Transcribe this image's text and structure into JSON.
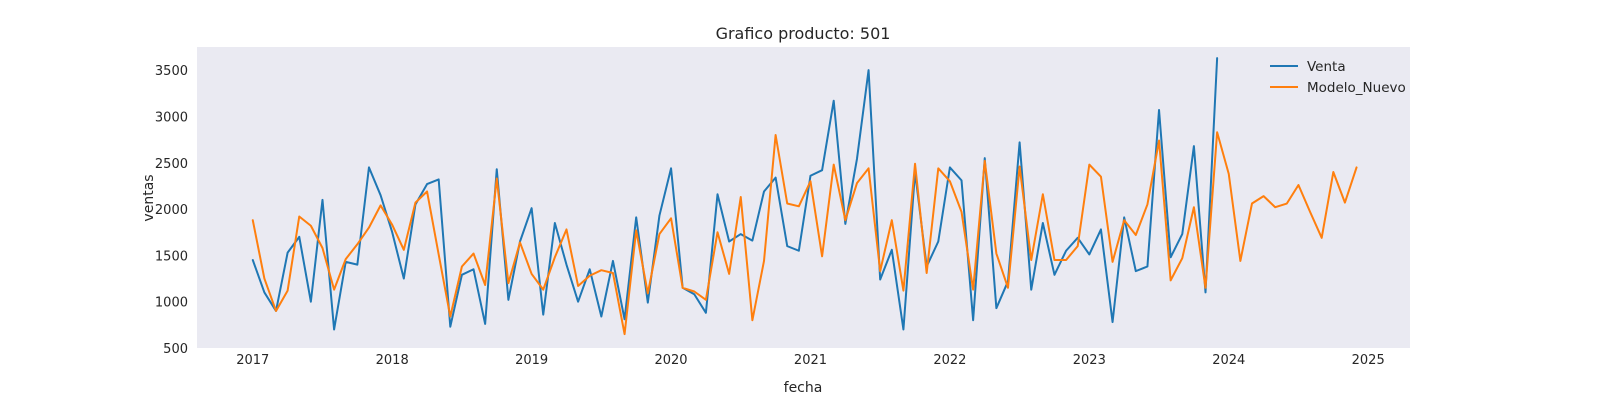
{
  "chart_data": {
    "type": "line",
    "title": "Grafico producto: 501",
    "xlabel": "fecha",
    "ylabel": "ventas",
    "xlim": [
      2016.6,
      2025.3
    ],
    "ylim": [
      500,
      3750
    ],
    "x_ticks": [
      2017,
      2018,
      2019,
      2020,
      2021,
      2022,
      2023,
      2024,
      2025
    ],
    "y_ticks": [
      500,
      1000,
      1500,
      2000,
      2500,
      3000,
      3500
    ],
    "grid": false,
    "legend_position": "top-right",
    "background_color": "#eaeaf2",
    "series": [
      {
        "name": "Venta",
        "color": "#1f77b4",
        "x_start": 2017.0,
        "x_step_months": 1,
        "values": [
          1450,
          1100,
          900,
          1530,
          1700,
          1000,
          2100,
          700,
          1430,
          1400,
          2450,
          2150,
          1750,
          1250,
          2050,
          2270,
          2320,
          730,
          1290,
          1350,
          760,
          2430,
          1020,
          1650,
          2010,
          860,
          1850,
          1400,
          1000,
          1350,
          840,
          1440,
          810,
          1910,
          990,
          1930,
          2440,
          1150,
          1080,
          880,
          2160,
          1650,
          1730,
          1660,
          2190,
          2340,
          1600,
          1550,
          2360,
          2420,
          3170,
          1840,
          2540,
          3500,
          1240,
          1560,
          700,
          2400,
          1380,
          1650,
          2450,
          2310,
          800,
          2550,
          930,
          1220,
          2720,
          1130,
          1850,
          1290,
          1550,
          1690,
          1510,
          1780,
          780,
          1910,
          1330,
          1380,
          3070,
          1480,
          1730,
          2680,
          1100,
          3630
        ]
      },
      {
        "name": "Modelo_Nuevo",
        "color": "#ff7f0e",
        "x_start": 2017.0,
        "x_step_months": 1,
        "values": [
          1880,
          1250,
          900,
          1120,
          1920,
          1820,
          1580,
          1130,
          1460,
          1620,
          1800,
          2040,
          1830,
          1560,
          2070,
          2190,
          1510,
          840,
          1380,
          1520,
          1180,
          2330,
          1200,
          1640,
          1300,
          1130,
          1480,
          1780,
          1170,
          1280,
          1340,
          1310,
          650,
          1770,
          1090,
          1730,
          1900,
          1150,
          1110,
          1020,
          1750,
          1300,
          2130,
          800,
          1440,
          2800,
          2060,
          2030,
          2300,
          1490,
          2480,
          1880,
          2280,
          2440,
          1330,
          1880,
          1120,
          2490,
          1310,
          2440,
          2300,
          1970,
          1130,
          2520,
          1520,
          1150,
          2460,
          1450,
          2160,
          1450,
          1450,
          1600,
          2480,
          2350,
          1430,
          1880,
          1720,
          2050,
          2740,
          1230,
          1470,
          2020,
          1150,
          2830,
          2380,
          1440,
          2060,
          2140,
          2020,
          2060,
          2260,
          1970,
          1690,
          2400,
          2070,
          2450
        ]
      }
    ]
  }
}
